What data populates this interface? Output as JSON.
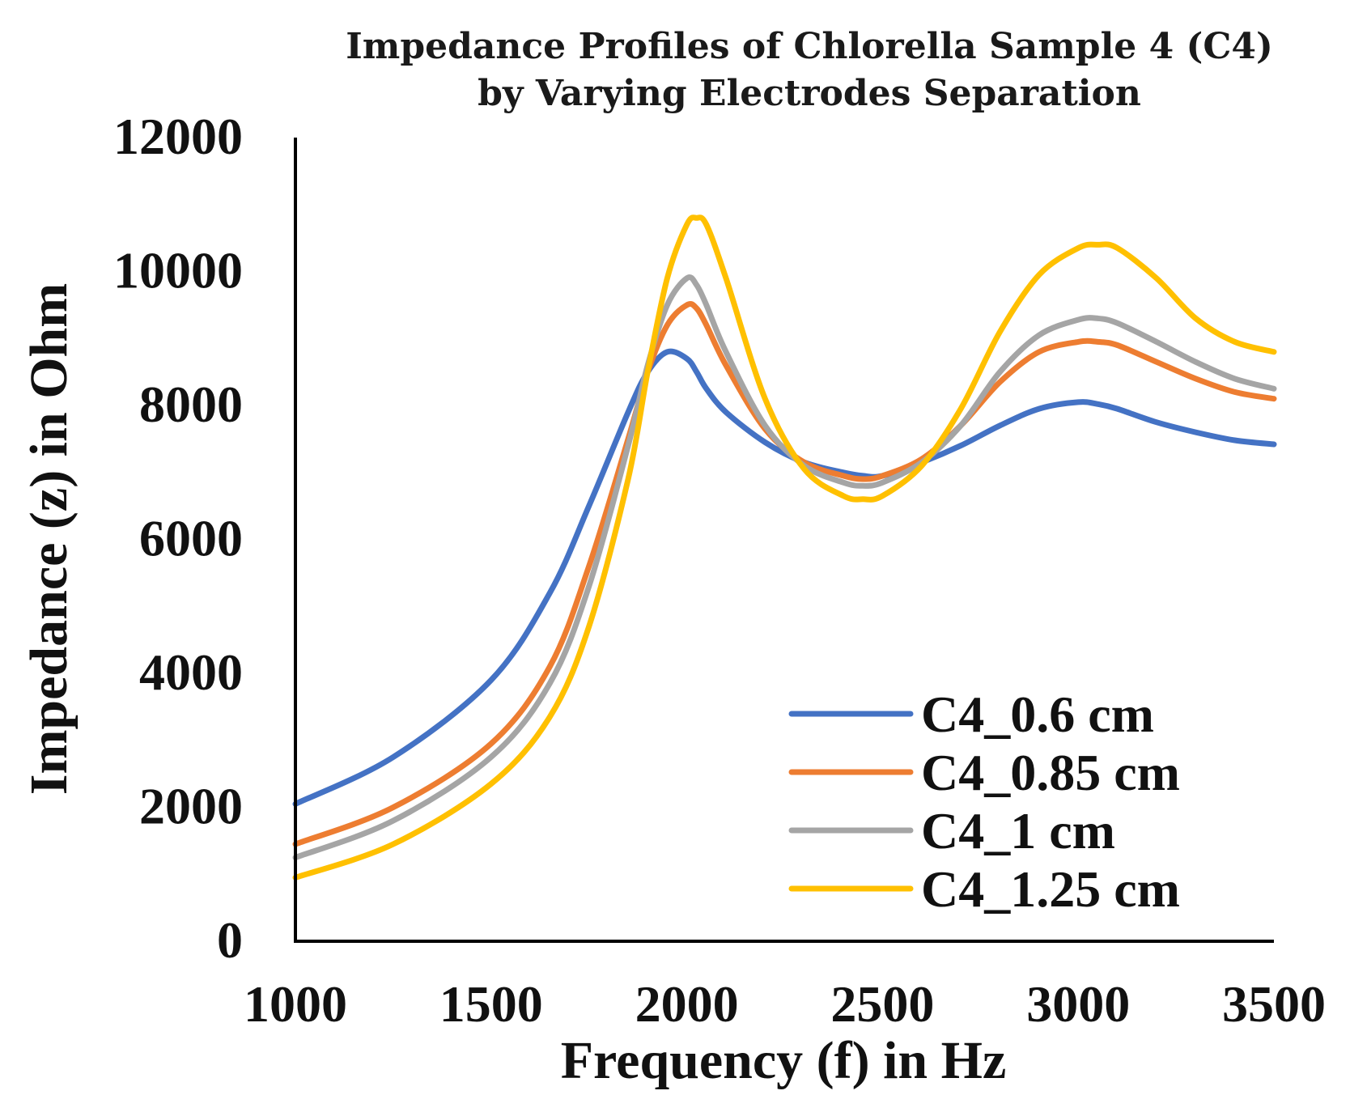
{
  "chart_data": {
    "type": "line",
    "title_lines": [
      "Impedance Profiles of Chlorella Sample 4 (C4)",
      "by Varying Electrodes Separation"
    ],
    "xlabel": "Frequency (f) in Hz",
    "ylabel": "Impedance (z) in Ohm",
    "xlim": [
      1000,
      3500
    ],
    "ylim": [
      0,
      12000
    ],
    "xticks": [
      1000,
      1500,
      2000,
      2500,
      3000,
      3500
    ],
    "yticks": [
      0,
      2000,
      4000,
      6000,
      8000,
      10000,
      12000
    ],
    "grid": false,
    "legend_position": "bottom-right",
    "x": [
      1000,
      1250,
      1500,
      1650,
      1750,
      1850,
      1900,
      1950,
      2000,
      2025,
      2050,
      2100,
      2200,
      2300,
      2400,
      2450,
      2500,
      2600,
      2700,
      2800,
      2900,
      3000,
      3050,
      3100,
      3200,
      3300,
      3400,
      3500
    ],
    "series": [
      {
        "name": "C4_0.6 cm",
        "color": "#4472C4",
        "values": [
          2050,
          2750,
          3900,
          5200,
          6500,
          7900,
          8500,
          8800,
          8700,
          8500,
          8250,
          7900,
          7450,
          7150,
          7000,
          6950,
          6950,
          7150,
          7400,
          7700,
          7950,
          8050,
          8020,
          7950,
          7750,
          7600,
          7480,
          7420
        ]
      },
      {
        "name": "C4_0.85 cm",
        "color": "#ED7D31",
        "values": [
          1450,
          2000,
          2950,
          4100,
          5600,
          7500,
          8500,
          9200,
          9500,
          9450,
          9200,
          8600,
          7650,
          7150,
          6950,
          6900,
          6950,
          7200,
          7700,
          8350,
          8800,
          8950,
          8950,
          8900,
          8650,
          8400,
          8200,
          8100
        ]
      },
      {
        "name": "C4_1 cm",
        "color": "#A5A5A5",
        "values": [
          1250,
          1800,
          2750,
          3850,
          5300,
          7400,
          8600,
          9500,
          9900,
          9800,
          9500,
          8800,
          7700,
          7100,
          6850,
          6800,
          6850,
          7150,
          7700,
          8500,
          9050,
          9280,
          9300,
          9230,
          8950,
          8650,
          8400,
          8250
        ]
      },
      {
        "name": "C4_1.25 cm",
        "color": "#FFC000",
        "values": [
          950,
          1450,
          2350,
          3350,
          4700,
          6900,
          8500,
          9900,
          10700,
          10800,
          10700,
          9900,
          8100,
          7050,
          6650,
          6600,
          6650,
          7100,
          7950,
          9100,
          9950,
          10350,
          10400,
          10350,
          9900,
          9300,
          8950,
          8800
        ]
      }
    ]
  }
}
